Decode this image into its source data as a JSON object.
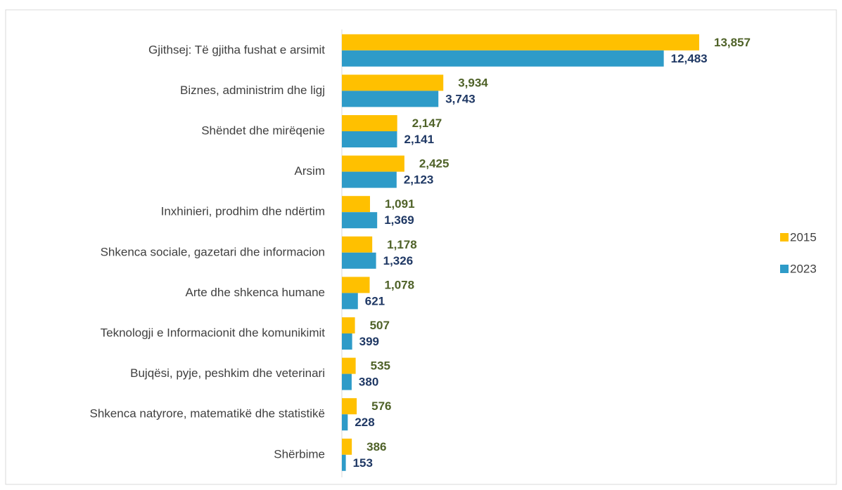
{
  "chart_data": {
    "type": "bar",
    "orientation": "horizontal",
    "categories": [
      "Gjithsej: Të gjitha fushat e arsimit",
      "Biznes, administrim dhe ligj",
      "Shëndet dhe mirëqenie",
      "Arsim",
      "Inxhinieri, prodhim dhe ndërtim",
      "Shkenca sociale, gazetari dhe  informacion",
      "Arte dhe shkenca humane",
      "Teknologji e Informacionit dhe komunikimit",
      "Bujqësi, pyje, peshkim dhe veterinari",
      "Shkenca natyrore, matematikë dhe statistikë",
      "Shërbime"
    ],
    "series": [
      {
        "name": "2015",
        "color": "#ffc000",
        "label_color": "#4f6228",
        "values": [
          13857,
          3934,
          2147,
          2425,
          1091,
          1178,
          1078,
          507,
          535,
          576,
          386
        ],
        "value_labels": [
          "13,857",
          "3,934",
          "2,147",
          "2,425",
          "1,091",
          "1,178",
          "1,078",
          "507",
          "535",
          "576",
          "386"
        ]
      },
      {
        "name": "2023",
        "color": "#2e9bc8",
        "label_color": "#1f3864",
        "values": [
          12483,
          3743,
          2141,
          2123,
          1369,
          1326,
          621,
          399,
          380,
          228,
          153
        ],
        "value_labels": [
          "12,483",
          "3,743",
          "2,141",
          "2,123",
          "1,369",
          "1,326",
          "621",
          "399",
          "380",
          "228",
          "153"
        ]
      }
    ],
    "legend": "right"
  }
}
